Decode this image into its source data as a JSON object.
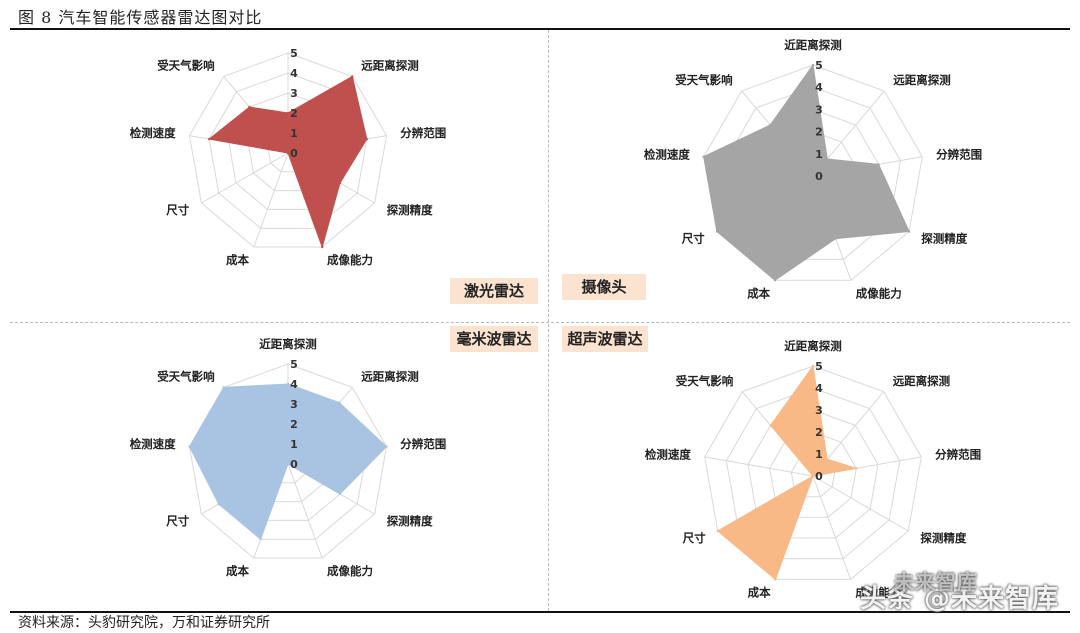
{
  "figure": {
    "title": "图 8   汽车智能传感器雷达图对比",
    "source": "资料来源：头豹研究院，万和证券研究所",
    "watermark": "头条 @未来智库",
    "watermark_ghost": "未来智库"
  },
  "axes": [
    "近距离探测",
    "远距离探测",
    "分辨范围",
    "探测精度",
    "成像能力",
    "成本",
    "尺寸",
    "检测速度",
    "受天气影响"
  ],
  "scale": {
    "min": 0,
    "max": 5,
    "ticks": [
      "0",
      "1",
      "2",
      "3",
      "4",
      "5"
    ]
  },
  "chart_data": [
    {
      "type": "radar",
      "name": "激光雷达",
      "color": "#c0504d",
      "categories": [
        "近距离探测",
        "远距离探测",
        "分辨范围",
        "探测精度",
        "成像能力",
        "成本",
        "尺寸",
        "检测速度",
        "受天气影响"
      ],
      "values": [
        2,
        5,
        4,
        3,
        5,
        0,
        0,
        4,
        3
      ],
      "rlim": [
        0,
        5
      ]
    },
    {
      "type": "radar",
      "name": "摄像头",
      "color": "#a5a5a5",
      "categories": [
        "近距离探测",
        "远距离探测",
        "分辨范围",
        "探测精度",
        "成像能力",
        "成本",
        "尺寸",
        "检测速度",
        "受天气影响"
      ],
      "values": [
        5,
        1,
        3,
        5,
        3,
        5,
        5,
        5,
        3
      ],
      "rlim": [
        0,
        5
      ]
    },
    {
      "type": "radar",
      "name": "毫米波雷达",
      "color": "#a9c4e2",
      "categories": [
        "近距离探测",
        "远距离探测",
        "分辨范围",
        "探测精度",
        "成像能力",
        "成本",
        "尺寸",
        "检测速度",
        "受天气影响"
      ],
      "values": [
        4,
        4,
        5,
        3,
        0,
        4,
        4,
        5,
        5
      ],
      "rlim": [
        0,
        5
      ]
    },
    {
      "type": "radar",
      "name": "超声波雷达",
      "color": "#f9b986",
      "categories": [
        "近距离探测",
        "远距离探测",
        "分辨范围",
        "探测精度",
        "成像能力",
        "成本",
        "尺寸",
        "检测速度",
        "受天气影响"
      ],
      "values": [
        5,
        1,
        2,
        0,
        0,
        5,
        5,
        0,
        3
      ],
      "rlim": [
        0,
        5
      ]
    }
  ]
}
